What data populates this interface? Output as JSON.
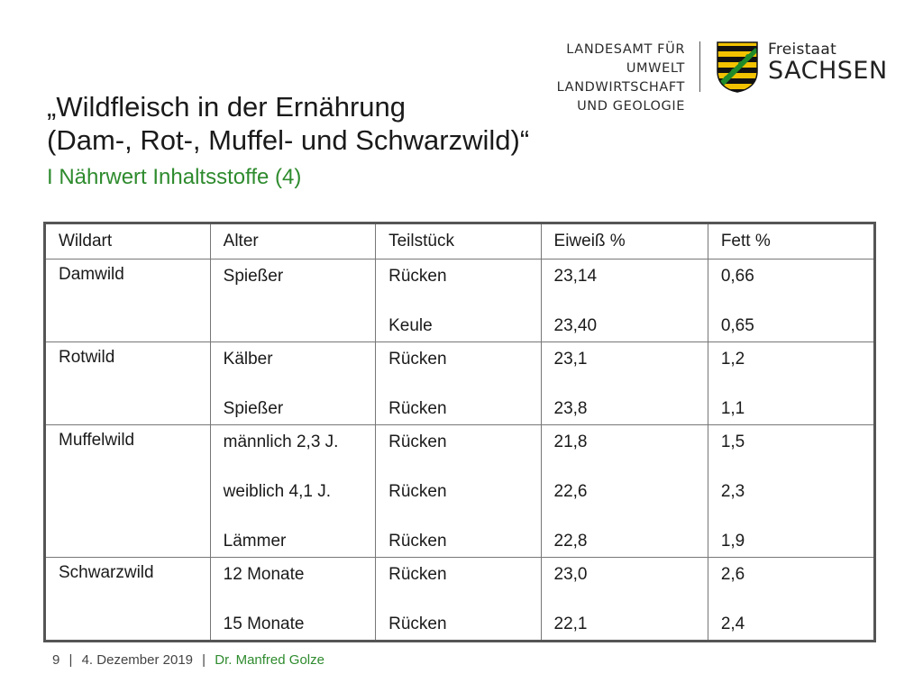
{
  "header": {
    "org_line1": "LANDESAMT FÜR UMWELT",
    "org_line2": "LANDWIRTSCHAFT",
    "org_line3": "UND GEOLOGIE",
    "freistaat": "Freistaat",
    "sachsen": "SACHSEN"
  },
  "slide": {
    "title_line1": "„Wildfleisch in der Ernährung",
    "title_line2": "(Dam-, Rot-, Muffel- und Schwarzwild)“",
    "subtitle": "I Nährwert Inhaltsstoffe (4)"
  },
  "table": {
    "columns": [
      "Wildart",
      "Alter",
      "Teilstück",
      "Eiweiß %",
      "Fett %"
    ],
    "rows": [
      {
        "wildart": "Damwild",
        "alter": [
          "Spießer"
        ],
        "teilstueck": [
          "Rücken",
          "Keule"
        ],
        "eiweiss": [
          "23,14",
          "23,40"
        ],
        "fett": [
          "0,66",
          "0,65"
        ]
      },
      {
        "wildart": "Rotwild",
        "alter": [
          "Kälber",
          "Spießer"
        ],
        "teilstueck": [
          "Rücken",
          "Rücken"
        ],
        "eiweiss": [
          "23,1",
          "23,8"
        ],
        "fett": [
          "1,2",
          "1,1"
        ]
      },
      {
        "wildart": "Muffelwild",
        "alter": [
          "männlich 2,3 J.",
          "weiblich 4,1 J.",
          "Lämmer"
        ],
        "teilstueck": [
          "Rücken",
          "Rücken",
          "Rücken"
        ],
        "eiweiss": [
          "21,8",
          "22,6",
          "22,8"
        ],
        "fett": [
          "1,5",
          "2,3",
          "1,9"
        ]
      },
      {
        "wildart": "Schwarzwild",
        "alter": [
          "12 Monate",
          "15 Monate"
        ],
        "teilstueck": [
          "Rücken",
          "Rücken"
        ],
        "eiweiss": [
          "23,0",
          "22,1"
        ],
        "fett": [
          "2,6",
          "2,4"
        ]
      }
    ]
  },
  "footer": {
    "page": "9",
    "date": "4. Dezember 2019",
    "author": "Dr. Manfred Golze",
    "separator": "|"
  },
  "colors": {
    "accent_green": "#2e8b2e",
    "coat_yellow": "#f2c200",
    "coat_black": "#111111",
    "coat_crown_green": "#1f8a2a"
  },
  "icons": {
    "coat_of_arms": "saxony-coat-of-arms-icon"
  }
}
